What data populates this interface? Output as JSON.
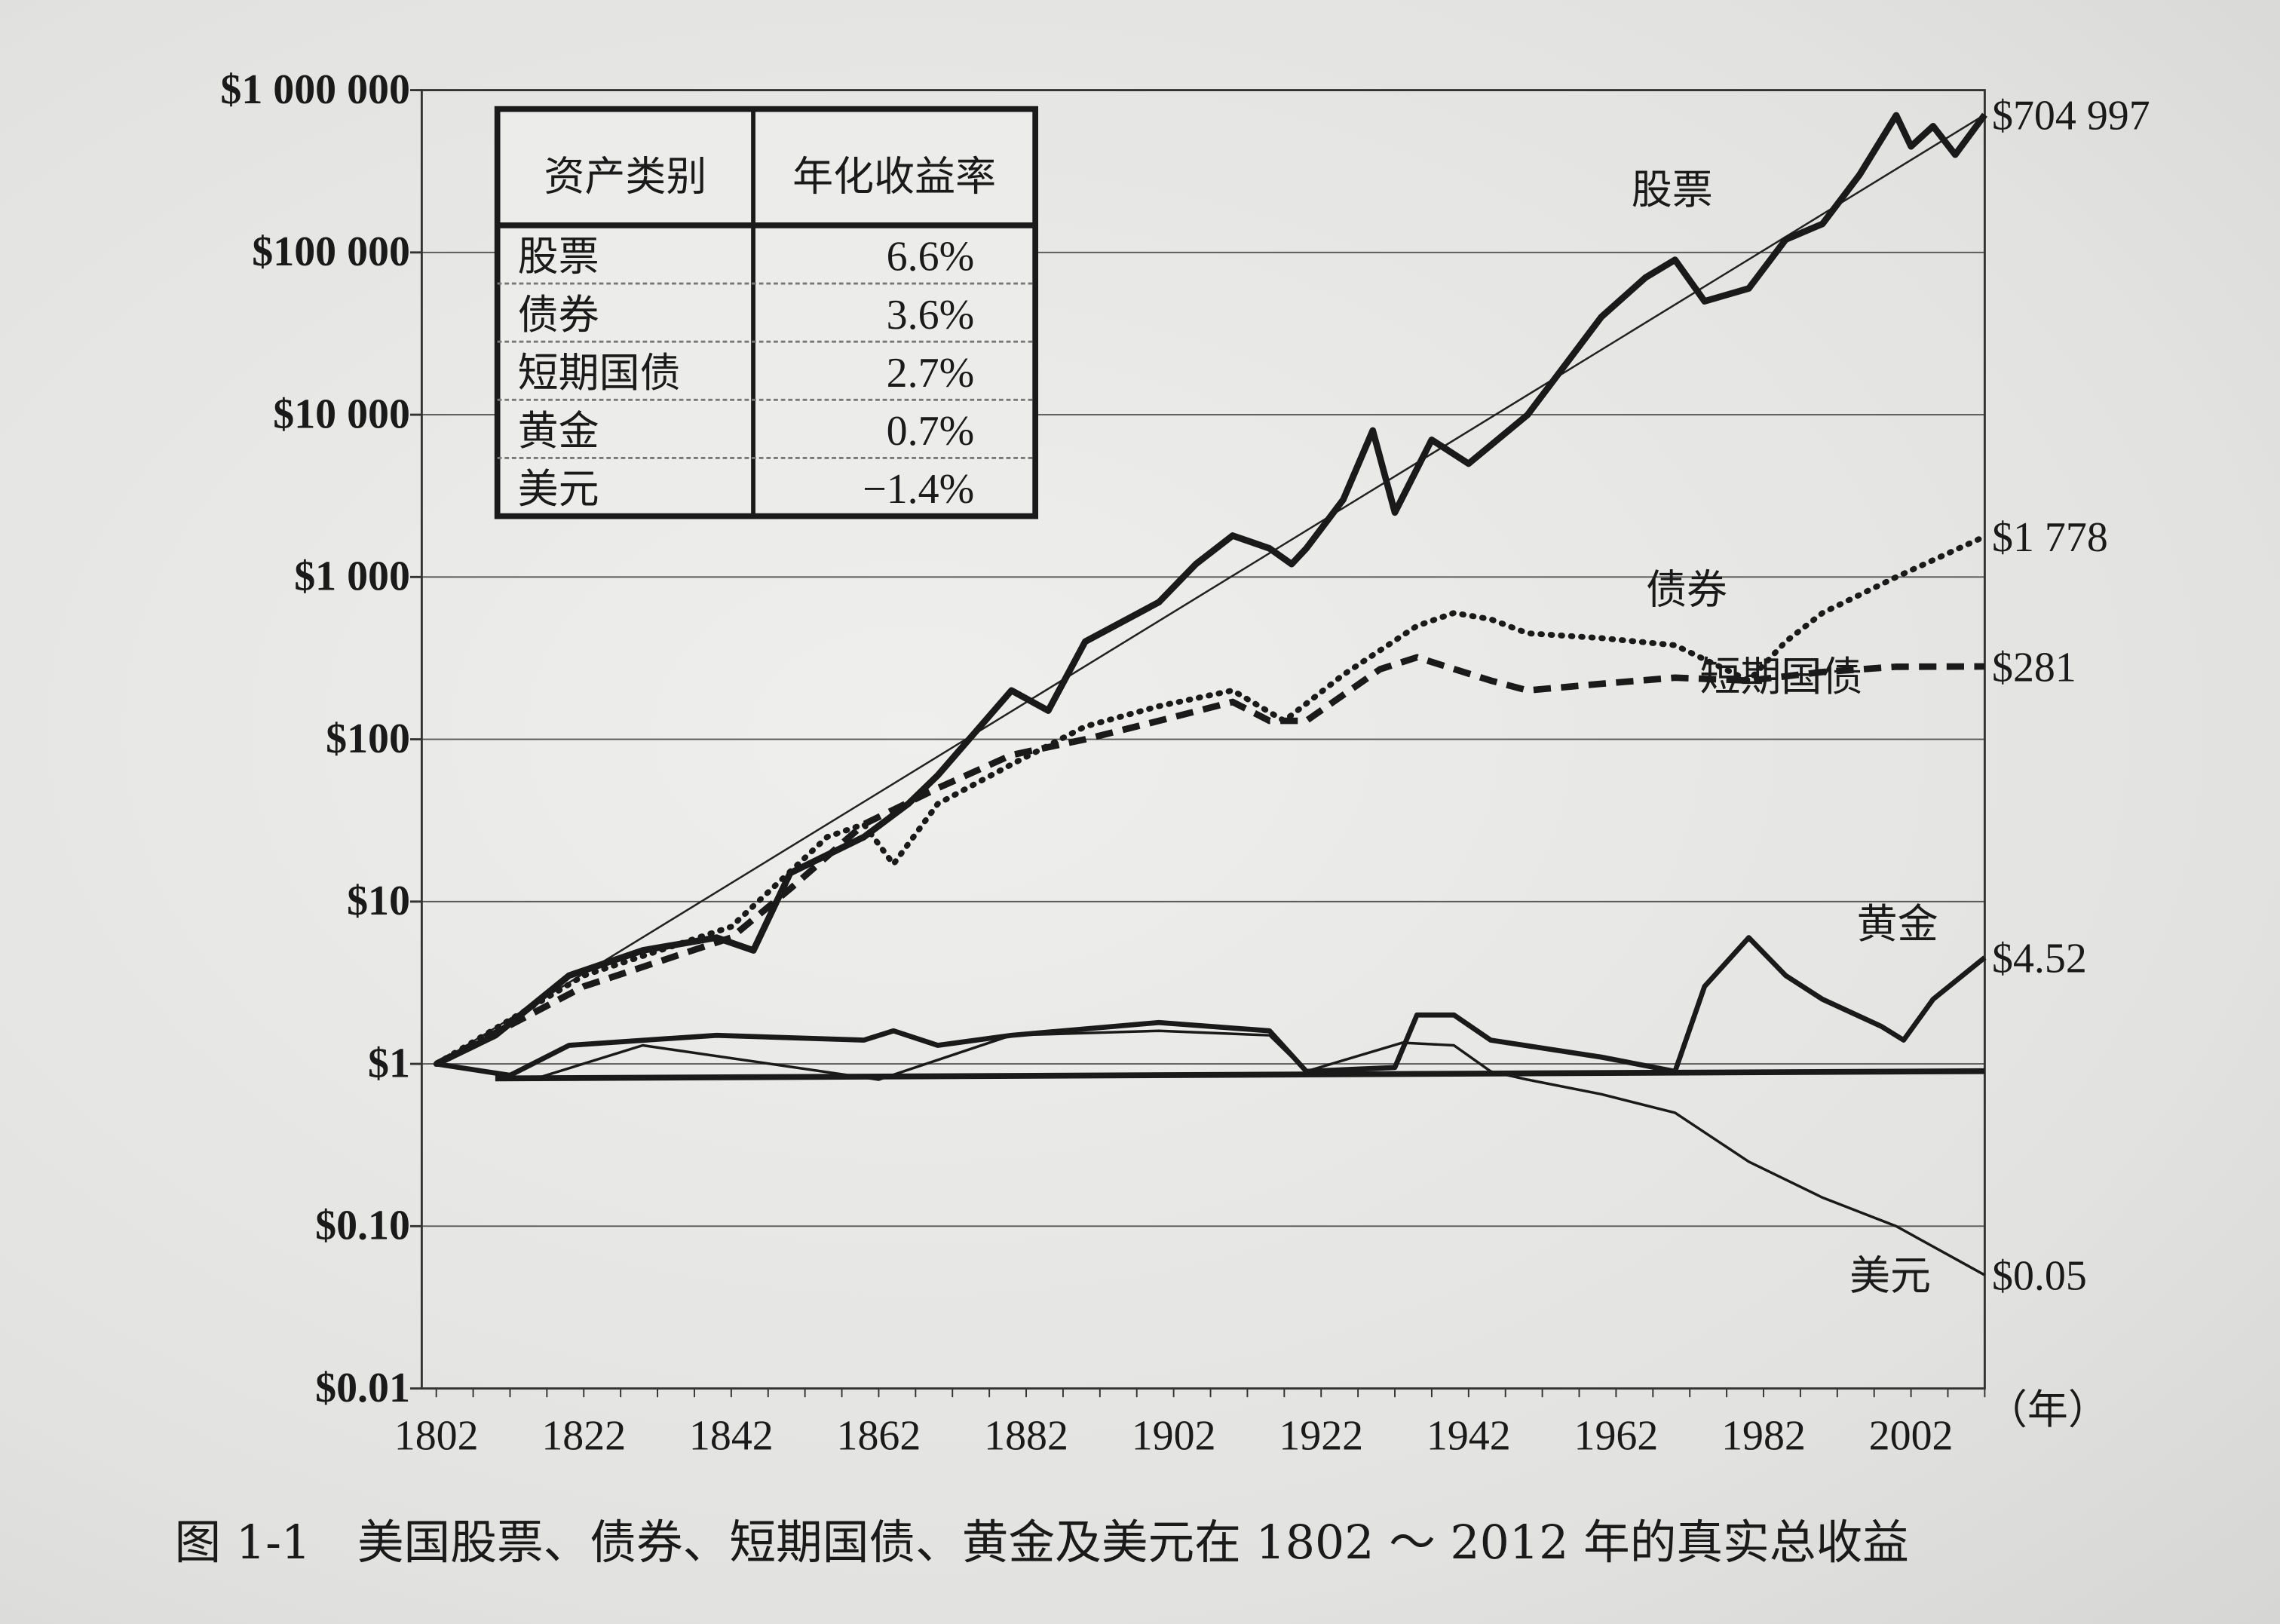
{
  "caption": "图 1-1　美国股票、债券、短期国债、黄金及美元在 1802 ～ 2012 年的真实总收益",
  "chart_data": {
    "type": "line",
    "title": "",
    "xlabel": "（年）",
    "ylabel": "",
    "y_scale": "log",
    "ylim": [
      0.01,
      1000000
    ],
    "xlim": [
      1802,
      2012
    ],
    "grid": true,
    "x_ticks": [
      "1802",
      "1822",
      "1842",
      "1862",
      "1882",
      "1902",
      "1922",
      "1942",
      "1962",
      "1982",
      "2002"
    ],
    "y_ticks": [
      {
        "value": 1000000,
        "label": "$1 000 000"
      },
      {
        "value": 100000,
        "label": "$100 000"
      },
      {
        "value": 10000,
        "label": "$10 000"
      },
      {
        "value": 1000,
        "label": "$1 000"
      },
      {
        "value": 100,
        "label": "$100"
      },
      {
        "value": 10,
        "label": "$10"
      },
      {
        "value": 1,
        "label": "$1"
      },
      {
        "value": 0.1,
        "label": "$0.10"
      },
      {
        "value": 0.01,
        "label": "$0.01"
      }
    ],
    "series": [
      {
        "name": "股票",
        "style": "solid-thick",
        "end_label": "$704 997",
        "x": [
          1802,
          1810,
          1820,
          1830,
          1840,
          1845,
          1850,
          1860,
          1866,
          1870,
          1880,
          1885,
          1890,
          1900,
          1905,
          1910,
          1915,
          1918,
          1920,
          1925,
          1929,
          1932,
          1937,
          1942,
          1950,
          1960,
          1966,
          1970,
          1974,
          1980,
          1985,
          1990,
          1995,
          2000,
          2002,
          2005,
          2008,
          2012
        ],
        "y": [
          1,
          1.5,
          3.5,
          5,
          6,
          5,
          15,
          25,
          40,
          60,
          200,
          150,
          400,
          700,
          1200,
          1800,
          1500,
          1200,
          1500,
          3000,
          8000,
          2500,
          7000,
          5000,
          10000,
          40000,
          70000,
          90000,
          50000,
          60000,
          120000,
          150000,
          300000,
          700000,
          450000,
          600000,
          400000,
          704997
        ]
      },
      {
        "name": "债券",
        "style": "dotted",
        "end_label": "$1 778",
        "x": [
          1802,
          1822,
          1842,
          1855,
          1860,
          1864,
          1870,
          1880,
          1890,
          1900,
          1910,
          1917,
          1925,
          1935,
          1940,
          1945,
          1950,
          1960,
          1970,
          1980,
          1985,
          1990,
          2000,
          2012
        ],
        "y": [
          1,
          3.5,
          7,
          25,
          30,
          17,
          40,
          70,
          120,
          160,
          200,
          130,
          250,
          500,
          600,
          550,
          450,
          420,
          380,
          230,
          400,
          600,
          1000,
          1778
        ]
      },
      {
        "name": "短期国债",
        "style": "dashed",
        "end_label": "$281",
        "x": [
          1802,
          1822,
          1842,
          1850,
          1860,
          1870,
          1880,
          1890,
          1900,
          1910,
          1915,
          1920,
          1930,
          1935,
          1945,
          1950,
          1960,
          1970,
          1980,
          1990,
          2000,
          2012
        ],
        "y": [
          1,
          3,
          6,
          12,
          30,
          50,
          80,
          100,
          130,
          170,
          130,
          130,
          270,
          320,
          230,
          200,
          220,
          240,
          230,
          260,
          280,
          281
        ]
      },
      {
        "name": "黄金",
        "style": "solid-medium",
        "end_label": "$4.52",
        "x": [
          1802,
          1812,
          1820,
          1840,
          1860,
          1864,
          1870,
          1880,
          1900,
          1915,
          1920,
          1932,
          1935,
          1940,
          1945,
          1960,
          1970,
          1974,
          1980,
          1985,
          1990,
          1998,
          2001,
          2005,
          2012
        ],
        "y": [
          1,
          0.85,
          1.3,
          1.5,
          1.4,
          1.6,
          1.3,
          1.5,
          1.8,
          1.6,
          0.9,
          0.95,
          2,
          2,
          1.4,
          1.1,
          0.9,
          3,
          6,
          3.5,
          2.5,
          1.7,
          1.4,
          2.5,
          4.52
        ]
      },
      {
        "name": "美元",
        "style": "solid-thin",
        "end_label": "$0.05",
        "x": [
          1802,
          1815,
          1830,
          1862,
          1880,
          1900,
          1915,
          1920,
          1933,
          1940,
          1945,
          1950,
          1960,
          1970,
          1980,
          1990,
          2000,
          2012
        ],
        "y": [
          1,
          0.8,
          1.3,
          0.8,
          1.5,
          1.6,
          1.5,
          0.9,
          1.35,
          1.3,
          0.9,
          0.8,
          0.65,
          0.5,
          0.25,
          0.15,
          0.1,
          0.05
        ]
      }
    ],
    "reference_lines": [
      {
        "type": "trend",
        "of": "股票",
        "from": [
          1802,
          1
        ],
        "to": [
          2012,
          704997
        ]
      },
      {
        "type": "horizontal",
        "value": 1
      }
    ],
    "inset_table": {
      "headers": [
        "资产类别",
        "年化收益率"
      ],
      "rows": [
        [
          "股票",
          "6.6%"
        ],
        [
          "债券",
          "3.6%"
        ],
        [
          "短期国债",
          "2.7%"
        ],
        [
          "黄金",
          "0.7%"
        ],
        [
          "美元",
          "−1.4%"
        ]
      ]
    }
  }
}
